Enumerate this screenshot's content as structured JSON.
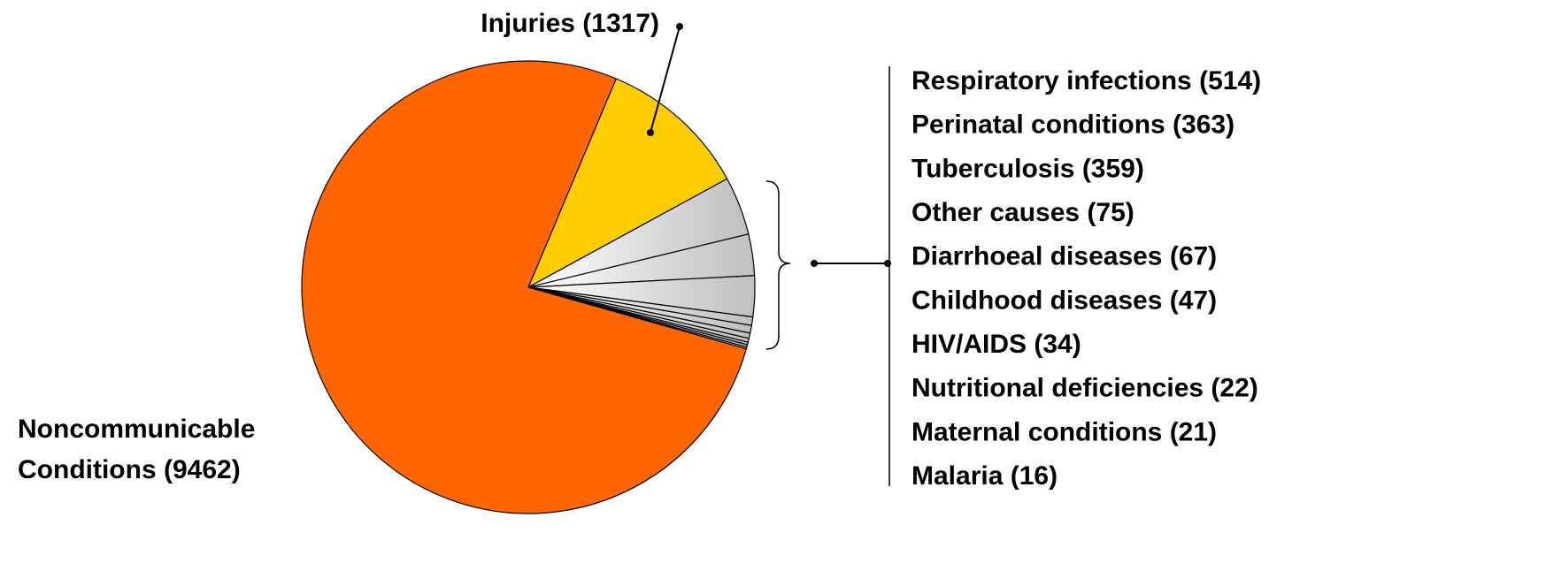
{
  "chart_data": {
    "type": "pie",
    "categories": [
      "Injuries (1317)",
      "Respiratory infections (514)",
      "Perinatal conditions (363)",
      "Tuberculosis (359)",
      "Other causes (75)",
      "Diarrhoeal diseases (67)",
      "Childhood diseases (47)",
      "HIV/AIDS (34)",
      "Nutritional deficiencies (22)",
      "Maternal conditions (21)",
      "Malaria (16)",
      "Noncommunicable Conditions (9462)"
    ],
    "values": [
      1317,
      514,
      363,
      359,
      75,
      67,
      47,
      34,
      22,
      21,
      16,
      9462
    ],
    "colors": [
      "#ffcc00",
      "#dcdcdc",
      "#dcdcdc",
      "#dcdcdc",
      "#dcdcdc",
      "#dcdcdc",
      "#dcdcdc",
      "#dcdcdc",
      "#dcdcdc",
      "#dcdcdc",
      "#dcdcdc",
      "#ff6600"
    ]
  }
}
